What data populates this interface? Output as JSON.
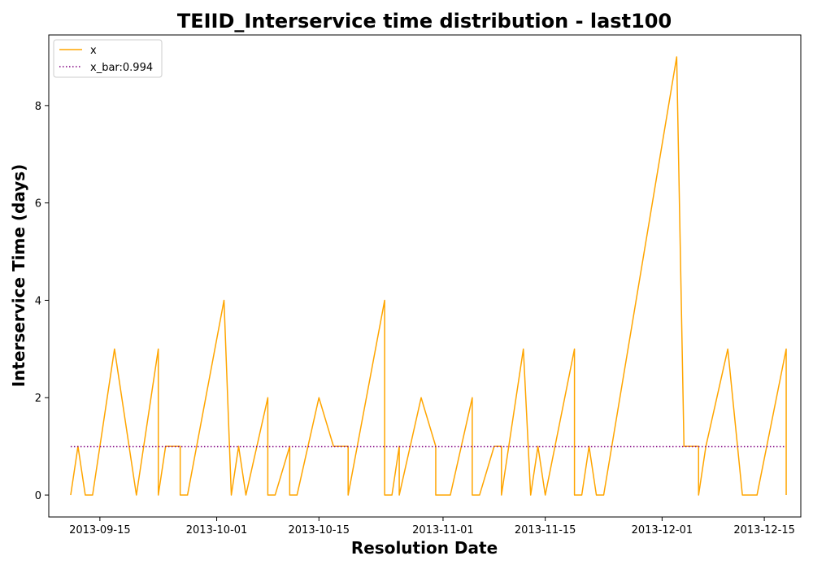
{
  "chart_data": {
    "type": "line",
    "title": "TEIID_Interservice time distribution - last100",
    "xlabel": "Resolution Date",
    "ylabel": "Interservice Time (days)",
    "x_type": "date",
    "xlim": [
      "2013-09-08",
      "2013-12-20"
    ],
    "ylim": [
      -0.45,
      9.45
    ],
    "x_ticks": [
      "2013-09-15",
      "2013-10-01",
      "2013-10-15",
      "2013-11-01",
      "2013-11-15",
      "2013-12-01",
      "2013-12-15"
    ],
    "y_ticks": [
      0,
      2,
      4,
      6,
      8
    ],
    "legend_position": "top-left",
    "grid": false,
    "series": [
      {
        "name": "x",
        "color": "#ffa500",
        "style": "solid",
        "points": [
          [
            "2013-09-11",
            0
          ],
          [
            "2013-09-12",
            1
          ],
          [
            "2013-09-13",
            0
          ],
          [
            "2013-09-14",
            0
          ],
          [
            "2013-09-17",
            3
          ],
          [
            "2013-09-20",
            0
          ],
          [
            "2013-09-23",
            3
          ],
          [
            "2013-09-23",
            0
          ],
          [
            "2013-09-24",
            1
          ],
          [
            "2013-09-25",
            1
          ],
          [
            "2013-09-26",
            1
          ],
          [
            "2013-09-26",
            0
          ],
          [
            "2013-09-27",
            0
          ],
          [
            "2013-10-02",
            4
          ],
          [
            "2013-10-03",
            0
          ],
          [
            "2013-10-04",
            1
          ],
          [
            "2013-10-05",
            0
          ],
          [
            "2013-10-08",
            2
          ],
          [
            "2013-10-08",
            0
          ],
          [
            "2013-10-09",
            0
          ],
          [
            "2013-10-11",
            1
          ],
          [
            "2013-10-11",
            0
          ],
          [
            "2013-10-12",
            0
          ],
          [
            "2013-10-15",
            2
          ],
          [
            "2013-10-17",
            1
          ],
          [
            "2013-10-18",
            1
          ],
          [
            "2013-10-19",
            1
          ],
          [
            "2013-10-19",
            0
          ],
          [
            "2013-10-24",
            4
          ],
          [
            "2013-10-24",
            0
          ],
          [
            "2013-10-25",
            0
          ],
          [
            "2013-10-26",
            1
          ],
          [
            "2013-10-26",
            0
          ],
          [
            "2013-10-29",
            2
          ],
          [
            "2013-10-31",
            1
          ],
          [
            "2013-10-31",
            0
          ],
          [
            "2013-11-01",
            0
          ],
          [
            "2013-11-02",
            0
          ],
          [
            "2013-11-05",
            2
          ],
          [
            "2013-11-05",
            0
          ],
          [
            "2013-11-06",
            0
          ],
          [
            "2013-11-08",
            1
          ],
          [
            "2013-11-09",
            1
          ],
          [
            "2013-11-09",
            0
          ],
          [
            "2013-11-12",
            3
          ],
          [
            "2013-11-13",
            0
          ],
          [
            "2013-11-14",
            1
          ],
          [
            "2013-11-15",
            0
          ],
          [
            "2013-11-19",
            3
          ],
          [
            "2013-11-19",
            0
          ],
          [
            "2013-11-20",
            0
          ],
          [
            "2013-11-21",
            1
          ],
          [
            "2013-11-22",
            0
          ],
          [
            "2013-11-23",
            0
          ],
          [
            "2013-12-03",
            9
          ],
          [
            "2013-12-04",
            1
          ],
          [
            "2013-12-05",
            1
          ],
          [
            "2013-12-06",
            1
          ],
          [
            "2013-12-06",
            0
          ],
          [
            "2013-12-07",
            1
          ],
          [
            "2013-12-10",
            3
          ],
          [
            "2013-12-12",
            0
          ],
          [
            "2013-12-13",
            0
          ],
          [
            "2013-12-14",
            0
          ],
          [
            "2013-12-18",
            3
          ],
          [
            "2013-12-18",
            0
          ]
        ]
      },
      {
        "name": "x_bar:0.994",
        "color": "#800080",
        "style": "dotted",
        "points": [
          [
            "2013-09-11",
            0.994
          ],
          [
            "2013-12-18",
            0.994
          ]
        ]
      }
    ]
  }
}
